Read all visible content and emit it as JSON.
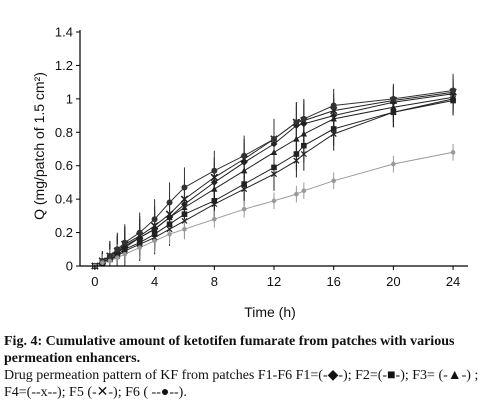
{
  "caption": {
    "fig_label": "Fig. 4:",
    "fig_title": "Cumulative amount of ketotifen fumarate from patches with various permeation enhancers.",
    "legend_text": "Drug permeation pattern of KF from patches F1-F6 F1=(-◆-); F2=(-■-); F3= (-▲-) ; F4=(--x--);  F5 (-✕-);  F6 ( --●--)."
  },
  "chart_data": {
    "type": "line",
    "xlabel": "Time (h)",
    "ylabel": "Q (mg/patch of 1.5 cm²)",
    "xlim": [
      -1,
      25
    ],
    "ylim": [
      0,
      1.4
    ],
    "xticks": [
      "0",
      "4",
      "8",
      "12",
      "16",
      "20",
      "24"
    ],
    "yticks": [
      "0",
      "0.2",
      "0.4",
      "0.6",
      "0.8",
      "1",
      "1.2",
      "1.4"
    ],
    "grid": false,
    "x": [
      0,
      0.5,
      1,
      1.5,
      2,
      3,
      4,
      5,
      6,
      8,
      10,
      12,
      13.5,
      14,
      16,
      20,
      24
    ],
    "series": [
      {
        "name": "F1",
        "marker": "diamond",
        "color": "#222222",
        "values": [
          0,
          0.02,
          0.05,
          0.08,
          0.11,
          0.17,
          0.22,
          0.29,
          0.37,
          0.5,
          0.62,
          0.73,
          0.84,
          0.85,
          0.9,
          0.98,
          1.03
        ],
        "errors": [
          0,
          0.06,
          0.09,
          0.1,
          0.11,
          0.11,
          0.12,
          0.12,
          0.12,
          0.12,
          0.12,
          0.12,
          0.12,
          0.12,
          0.1,
          0.09,
          0.09
        ]
      },
      {
        "name": "F2",
        "marker": "square",
        "color": "#222222",
        "values": [
          0,
          0.02,
          0.04,
          0.07,
          0.1,
          0.14,
          0.19,
          0.25,
          0.31,
          0.39,
          0.49,
          0.59,
          0.67,
          0.72,
          0.82,
          0.92,
          0.99
        ],
        "errors": [
          0,
          0.06,
          0.09,
          0.1,
          0.1,
          0.1,
          0.1,
          0.1,
          0.1,
          0.1,
          0.1,
          0.1,
          0.1,
          0.1,
          0.1,
          0.09,
          0.09
        ]
      },
      {
        "name": "F3",
        "marker": "triangle",
        "color": "#222222",
        "values": [
          0,
          0.02,
          0.05,
          0.08,
          0.12,
          0.17,
          0.22,
          0.29,
          0.35,
          0.46,
          0.57,
          0.68,
          0.76,
          0.79,
          0.88,
          0.95,
          1.01
        ],
        "errors": [
          0,
          0.06,
          0.09,
          0.1,
          0.11,
          0.11,
          0.11,
          0.11,
          0.11,
          0.11,
          0.11,
          0.11,
          0.11,
          0.11,
          0.1,
          0.09,
          0.09
        ]
      },
      {
        "name": "F4",
        "marker": "x",
        "color": "#222222",
        "values": [
          0,
          0.02,
          0.04,
          0.06,
          0.09,
          0.13,
          0.17,
          0.22,
          0.27,
          0.37,
          0.46,
          0.55,
          0.63,
          0.67,
          0.79,
          0.92,
          1
        ],
        "errors": [
          0,
          0.06,
          0.09,
          0.1,
          0.1,
          0.1,
          0.1,
          0.1,
          0.1,
          0.1,
          0.1,
          0.1,
          0.1,
          0.1,
          0.1,
          0.09,
          0.09
        ]
      },
      {
        "name": "F5",
        "marker": "cross",
        "color": "#222222",
        "values": [
          0,
          0.03,
          0.06,
          0.09,
          0.13,
          0.18,
          0.24,
          0.31,
          0.4,
          0.53,
          0.64,
          0.76,
          0.86,
          0.87,
          0.93,
          0.99,
          1.04
        ],
        "errors": [
          0,
          0.06,
          0.09,
          0.1,
          0.11,
          0.12,
          0.12,
          0.12,
          0.12,
          0.12,
          0.12,
          0.12,
          0.12,
          0.12,
          0.1,
          0.09,
          0.09
        ]
      },
      {
        "name": "F6",
        "marker": "circle",
        "color": "#333333",
        "values": [
          0,
          0.03,
          0.06,
          0.1,
          0.14,
          0.2,
          0.28,
          0.38,
          0.47,
          0.57,
          0.66,
          0.76,
          0.86,
          0.88,
          0.96,
          1,
          1.05
        ],
        "errors": [
          0,
          0.06,
          0.09,
          0.1,
          0.11,
          0.12,
          0.12,
          0.12,
          0.12,
          0.12,
          0.12,
          0.12,
          0.12,
          0.12,
          0.1,
          0.09,
          0.1
        ]
      },
      {
        "name": "",
        "marker": "circle-small",
        "color": "#999999",
        "values": [
          0,
          0.02,
          0.03,
          0.05,
          0.07,
          0.11,
          0.15,
          0.19,
          0.22,
          0.28,
          0.34,
          0.39,
          0.43,
          0.45,
          0.51,
          0.61,
          0.68
        ],
        "errors": [
          0,
          0.05,
          0.07,
          0.08,
          0.08,
          0.07,
          0.07,
          0.06,
          0.06,
          0.05,
          0.05,
          0.05,
          0.05,
          0.05,
          0.05,
          0.05,
          0.05
        ]
      }
    ]
  }
}
